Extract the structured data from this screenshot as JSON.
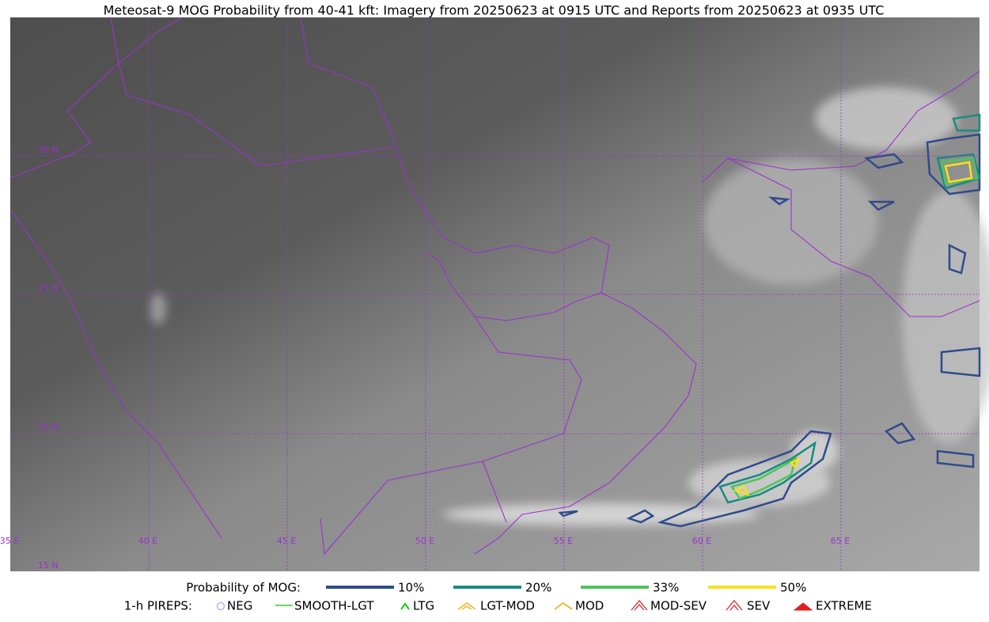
{
  "title": "Meteosat-9 MOG Probability from 40-41 kft: Imagery from 20250623 at 0915 UTC and Reports from 20250623 at 0935 UTC",
  "map": {
    "lat_labels": [
      "30 N",
      "25 N",
      "20 N",
      "15 N"
    ],
    "lon_labels": [
      "35 E",
      "40 E",
      "45 E",
      "50 E",
      "55 E",
      "60 E",
      "65 E"
    ]
  },
  "legend": {
    "probability": {
      "label": "Probability of MOG:",
      "items": [
        {
          "label": "10%",
          "color": "#2f4b8c"
        },
        {
          "label": "20%",
          "color": "#1a8a82"
        },
        {
          "label": "33%",
          "color": "#4ec45c"
        },
        {
          "label": "50%",
          "color": "#f6e21c"
        }
      ]
    },
    "pireps": {
      "label": "1-h PIREPS:",
      "items": [
        {
          "label": "NEG",
          "color": "#b4b4ff"
        },
        {
          "label": "SMOOTH-LGT",
          "color": "#33cc33"
        },
        {
          "label": "LTG",
          "color": "#11cc11"
        },
        {
          "label": "LGT-MOD",
          "color": "#f2b424"
        },
        {
          "label": "MOD",
          "color": "#f2a800"
        },
        {
          "label": "MOD-SEV",
          "color": "#e02828"
        },
        {
          "label": "SEV",
          "color": "#e02828"
        },
        {
          "label": "EXTREME",
          "color": "#e02020"
        }
      ]
    }
  }
}
